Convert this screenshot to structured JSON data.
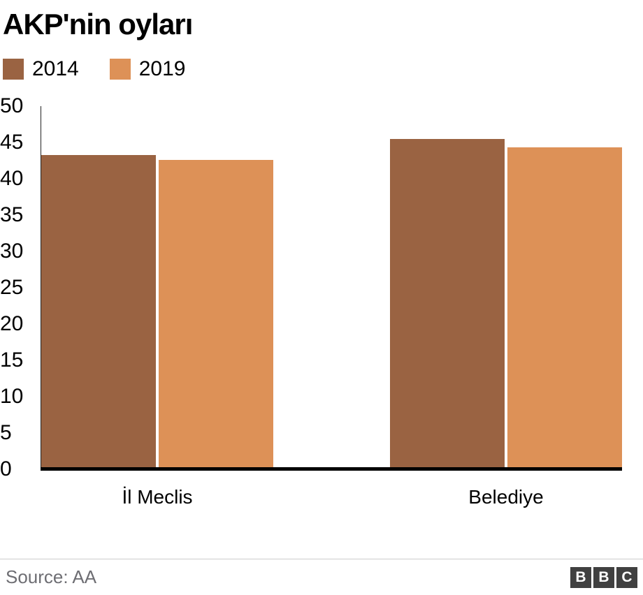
{
  "title": "AKP'nin oyları",
  "source": "Source: AA",
  "logo_letters": [
    "B",
    "B",
    "C"
  ],
  "chart_data": {
    "type": "bar",
    "title": "AKP'nin oyları",
    "categories": [
      "İl Meclis",
      "Belediye"
    ],
    "series": [
      {
        "name": "2014",
        "color": "#9a6342",
        "values": [
          43.3,
          45.5
        ]
      },
      {
        "name": "2019",
        "color": "#dd9157",
        "values": [
          42.6,
          44.3
        ]
      }
    ],
    "ylim": [
      0,
      50
    ],
    "yticks": [
      0,
      5,
      10,
      15,
      20,
      25,
      30,
      35,
      40,
      45,
      50
    ],
    "xlabel": "",
    "ylabel": "",
    "grid": false,
    "legend_position": "top-left"
  }
}
